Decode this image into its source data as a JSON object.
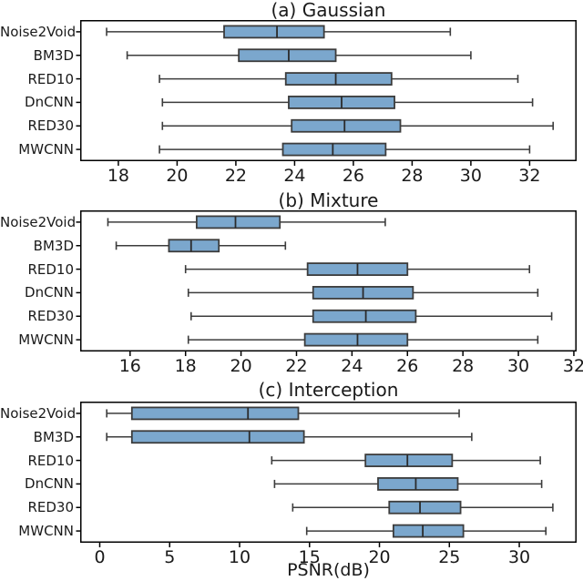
{
  "figure": {
    "xlabel": "PSNR(dB)",
    "colors": {
      "box_fill": "#7ba7cd",
      "box_edge": "#3c3c3c",
      "whisker": "#3c3c3c",
      "median": "#2b2b2b",
      "spine": "#000000",
      "text": "#1a1a1a"
    }
  },
  "chart_data": [
    {
      "type": "boxplot",
      "orientation": "horizontal",
      "title": "(a) Gaussian",
      "xlim": [
        16.7,
        33.6
      ],
      "xticks": [
        18,
        20,
        22,
        24,
        26,
        28,
        30,
        32
      ],
      "categories": [
        "Noise2Void",
        "BM3D",
        "RED10",
        "DnCNN",
        "RED30",
        "MWCNN"
      ],
      "series": [
        {
          "name": "Noise2Void",
          "min": 17.6,
          "q1": 21.6,
          "median": 23.4,
          "q3": 25.0,
          "max": 29.3
        },
        {
          "name": "BM3D",
          "min": 18.3,
          "q1": 22.1,
          "median": 23.8,
          "q3": 25.4,
          "max": 30.0
        },
        {
          "name": "RED10",
          "min": 19.4,
          "q1": 23.7,
          "median": 25.4,
          "q3": 27.3,
          "max": 31.6
        },
        {
          "name": "DnCNN",
          "min": 19.5,
          "q1": 23.8,
          "median": 25.6,
          "q3": 27.4,
          "max": 32.1
        },
        {
          "name": "RED30",
          "min": 19.5,
          "q1": 23.9,
          "median": 25.7,
          "q3": 27.6,
          "max": 32.8
        },
        {
          "name": "MWCNN",
          "min": 19.4,
          "q1": 23.6,
          "median": 25.3,
          "q3": 27.1,
          "max": 32.0
        }
      ]
    },
    {
      "type": "boxplot",
      "orientation": "horizontal",
      "title": "(b) Mixture",
      "xlim": [
        14.2,
        32.1
      ],
      "xticks": [
        16,
        18,
        20,
        22,
        24,
        26,
        28,
        30,
        32
      ],
      "categories": [
        "Noise2Void",
        "BM3D",
        "RED10",
        "DnCNN",
        "RED30",
        "MWCNN"
      ],
      "series": [
        {
          "name": "Noise2Void",
          "min": 15.2,
          "q1": 18.4,
          "median": 19.8,
          "q3": 21.4,
          "max": 25.2
        },
        {
          "name": "BM3D",
          "min": 15.5,
          "q1": 17.4,
          "median": 18.2,
          "q3": 19.2,
          "max": 21.6
        },
        {
          "name": "RED10",
          "min": 18.0,
          "q1": 22.4,
          "median": 24.2,
          "q3": 26.0,
          "max": 30.4
        },
        {
          "name": "DnCNN",
          "min": 18.1,
          "q1": 22.6,
          "median": 24.4,
          "q3": 26.2,
          "max": 30.7
        },
        {
          "name": "RED30",
          "min": 18.2,
          "q1": 22.6,
          "median": 24.5,
          "q3": 26.3,
          "max": 31.2
        },
        {
          "name": "MWCNN",
          "min": 18.1,
          "q1": 22.3,
          "median": 24.2,
          "q3": 26.0,
          "max": 30.7
        }
      ]
    },
    {
      "type": "boxplot",
      "orientation": "horizontal",
      "title": "(c) Interception",
      "xlim": [
        -1.4,
        34.1
      ],
      "xticks": [
        0,
        5,
        10,
        15,
        20,
        25,
        30
      ],
      "categories": [
        "Noise2Void",
        "BM3D",
        "RED10",
        "DnCNN",
        "RED30",
        "MWCNN"
      ],
      "series": [
        {
          "name": "Noise2Void",
          "min": 0.5,
          "q1": 2.3,
          "median": 10.6,
          "q3": 14.2,
          "max": 25.7
        },
        {
          "name": "BM3D",
          "min": 0.5,
          "q1": 2.3,
          "median": 10.7,
          "q3": 14.6,
          "max": 26.6
        },
        {
          "name": "RED10",
          "min": 12.3,
          "q1": 19.0,
          "median": 22.0,
          "q3": 25.2,
          "max": 31.5
        },
        {
          "name": "DnCNN",
          "min": 12.5,
          "q1": 19.9,
          "median": 22.6,
          "q3": 25.6,
          "max": 31.6
        },
        {
          "name": "RED30",
          "min": 13.8,
          "q1": 20.7,
          "median": 22.9,
          "q3": 25.8,
          "max": 32.4
        },
        {
          "name": "MWCNN",
          "min": 14.8,
          "q1": 21.0,
          "median": 23.1,
          "q3": 26.0,
          "max": 31.9
        }
      ]
    }
  ]
}
